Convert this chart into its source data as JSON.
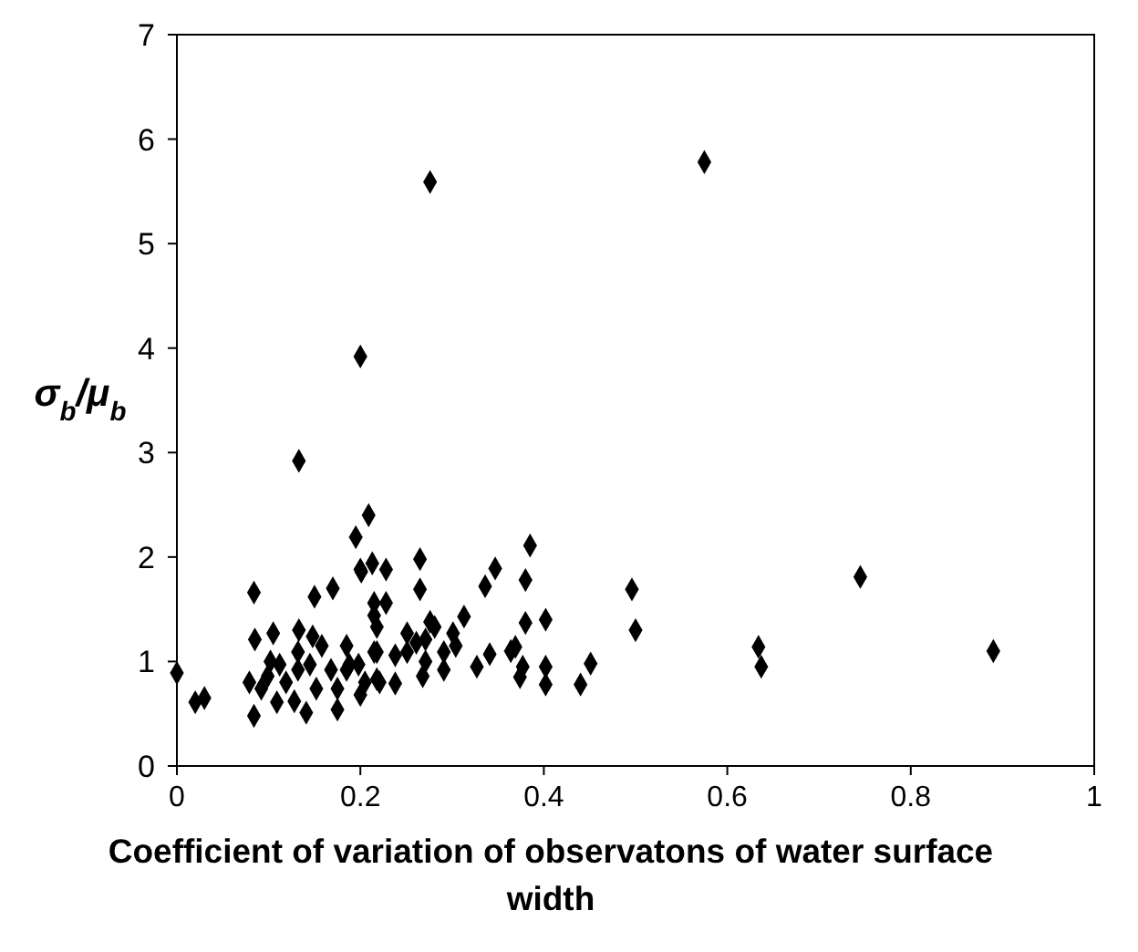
{
  "chart_data": {
    "type": "scatter",
    "xlabel": "Coefficient of variation of observatons of water surface width",
    "ylabel": "σ$_{b}$/μ$_{b}$",
    "x": [
      0,
      0.02,
      0.03,
      0.084,
      0.133,
      0.084,
      0.085,
      0.105,
      0.133,
      0.15,
      0.17,
      0.195,
      0.209,
      0.2,
      0.141,
      0.175,
      0.2,
      0.109,
      0.213,
      0.201,
      0.228,
      0.265,
      0.265,
      0.215,
      0.228,
      0.215,
      0.218,
      0.276,
      0.313,
      0.336,
      0.347,
      0.38,
      0.385,
      0.38,
      0.402,
      0.327,
      0.341,
      0.364,
      0.369,
      0.374,
      0.377,
      0.402,
      0.402,
      0.44,
      0.451,
      0.496,
      0.5,
      0.634,
      0.637,
      0.745,
      0.89,
      0.276,
      0.575,
      0.2,
      0.221,
      0.238,
      0.268,
      0.291,
      0.251,
      0.271,
      0.301,
      0.304,
      0.291,
      0.271,
      0.251,
      0.238,
      0.218,
      0.198,
      0.185,
      0.281,
      0.261,
      0.079,
      0.092,
      0.099,
      0.112,
      0.119,
      0.132,
      0.132,
      0.145,
      0.152,
      0.158,
      0.168,
      0.175,
      0.185,
      0.188,
      0.205,
      0.215,
      0.218,
      0.128,
      0.102,
      0.148
    ],
    "values": [
      0.89,
      0.61,
      0.65,
      1.66,
      2.92,
      0.48,
      1.21,
      1.27,
      1.3,
      1.62,
      1.7,
      2.19,
      2.4,
      1.88,
      0.51,
      0.54,
      0.68,
      0.61,
      1.94,
      1.86,
      1.88,
      1.98,
      1.69,
      1.56,
      1.56,
      1.44,
      1.33,
      1.38,
      1.43,
      1.72,
      1.89,
      1.78,
      2.11,
      1.37,
      1.4,
      0.95,
      1.07,
      1.1,
      1.14,
      0.85,
      0.95,
      0.95,
      0.78,
      0.78,
      0.98,
      1.69,
      1.3,
      1.14,
      0.95,
      1.81,
      1.1,
      5.59,
      5.78,
      3.92,
      0.8,
      0.79,
      0.86,
      0.92,
      1.27,
      1.21,
      1.27,
      1.15,
      1.09,
      1,
      1.09,
      1.06,
      1.09,
      0.97,
      0.92,
      1.33,
      1.18,
      0.8,
      0.74,
      0.86,
      0.97,
      0.8,
      0.92,
      1.09,
      0.97,
      0.74,
      1.15,
      0.92,
      0.74,
      1.15,
      0.97,
      0.8,
      1.09,
      0.83,
      0.62,
      1,
      1.24
    ],
    "color": "#000000",
    "marker": "diamond",
    "xlim": [
      0,
      1
    ],
    "xticks": [
      0,
      0.2,
      0.4,
      0.6,
      0.8,
      1
    ],
    "ylim": [
      0,
      7
    ],
    "yticks": [
      0,
      1,
      2,
      3,
      4,
      5,
      6,
      7
    ],
    "grid": false
  }
}
